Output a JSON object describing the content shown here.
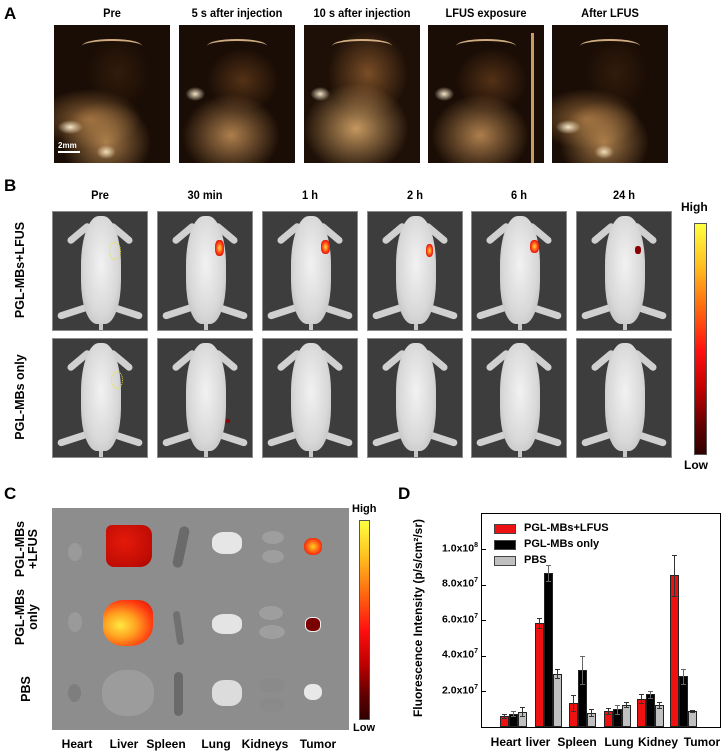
{
  "panel_a": {
    "letter": "A",
    "columns": [
      "Pre",
      "5 s after injection",
      "10 s after injection",
      "LFUS exposure",
      "After LFUS"
    ],
    "scale_bar": "2mm"
  },
  "panel_b": {
    "letter": "B",
    "columns": [
      "Pre",
      "30 min",
      "1 h",
      "2 h",
      "6 h",
      "24 h"
    ],
    "rows": [
      "PGL-MBs+LFUS",
      "PGL-MBs only"
    ],
    "colorbar": {
      "high": "High",
      "low": "Low"
    }
  },
  "panel_c": {
    "letter": "C",
    "rows": [
      "PGL-MBs\n+LFUS",
      "PGL-MBs\nonly",
      "PBS"
    ],
    "row_line1": [
      "PGL-MBs",
      "PGL-MBs",
      "PBS"
    ],
    "row_line2": [
      "+LFUS",
      "only",
      ""
    ],
    "organs": [
      "Heart",
      "Liver",
      "Spleen",
      "Lung",
      "Kidneys",
      "Tumor"
    ],
    "colorbar": {
      "high": "High",
      "low": "Low"
    }
  },
  "panel_d": {
    "letter": "D",
    "ylabel": "Fluorescence Intensity (p/s/cm²/sr)",
    "yticks": [
      {
        "base": "2.0x10",
        "exp": "7"
      },
      {
        "base": "4.0x10",
        "exp": "7"
      },
      {
        "base": "6.0x10",
        "exp": "7"
      },
      {
        "base": "8.0x10",
        "exp": "7"
      },
      {
        "base": "1.0x10",
        "exp": "8"
      }
    ],
    "legend": [
      "PGL-MBs+LFUS",
      "PGL-MBs only",
      "PBS"
    ],
    "categories": [
      "Heart",
      "liver",
      "Spleen",
      "Lung",
      "Kidney",
      "Tumor"
    ]
  },
  "chart_data": {
    "type": "bar",
    "title": "",
    "xlabel": "",
    "ylabel": "Fluorescence Intensity (p/s/cm²/sr)",
    "categories": [
      "Heart",
      "liver",
      "Spleen",
      "Lung",
      "Kidney",
      "Tumor"
    ],
    "ylim": [
      0,
      120000000
    ],
    "yticks": [
      20000000,
      40000000,
      60000000,
      80000000,
      100000000
    ],
    "grid": false,
    "legend_position": "upper left (inside)",
    "series": [
      {
        "name": "PGL-MBs+LFUS",
        "color": "#ee1111",
        "values": [
          6000000,
          58500000,
          13500000,
          9000000,
          16000000,
          85500000
        ],
        "errors": [
          1200000,
          3000000,
          4500000,
          1500000,
          2500000,
          11500000
        ]
      },
      {
        "name": "PGL-MBs only",
        "color": "#000000",
        "values": [
          7500000,
          87000000,
          32000000,
          10000000,
          18500000,
          28500000
        ],
        "errors": [
          1500000,
          4500000,
          8000000,
          2500000,
          2000000,
          4000000
        ]
      },
      {
        "name": "PBS",
        "color": "#c0c0c0",
        "values": [
          8500000,
          30000000,
          8000000,
          12500000,
          12500000,
          9000000
        ],
        "errors": [
          2500000,
          2500000,
          2000000,
          1500000,
          1800000,
          800000
        ]
      }
    ]
  }
}
